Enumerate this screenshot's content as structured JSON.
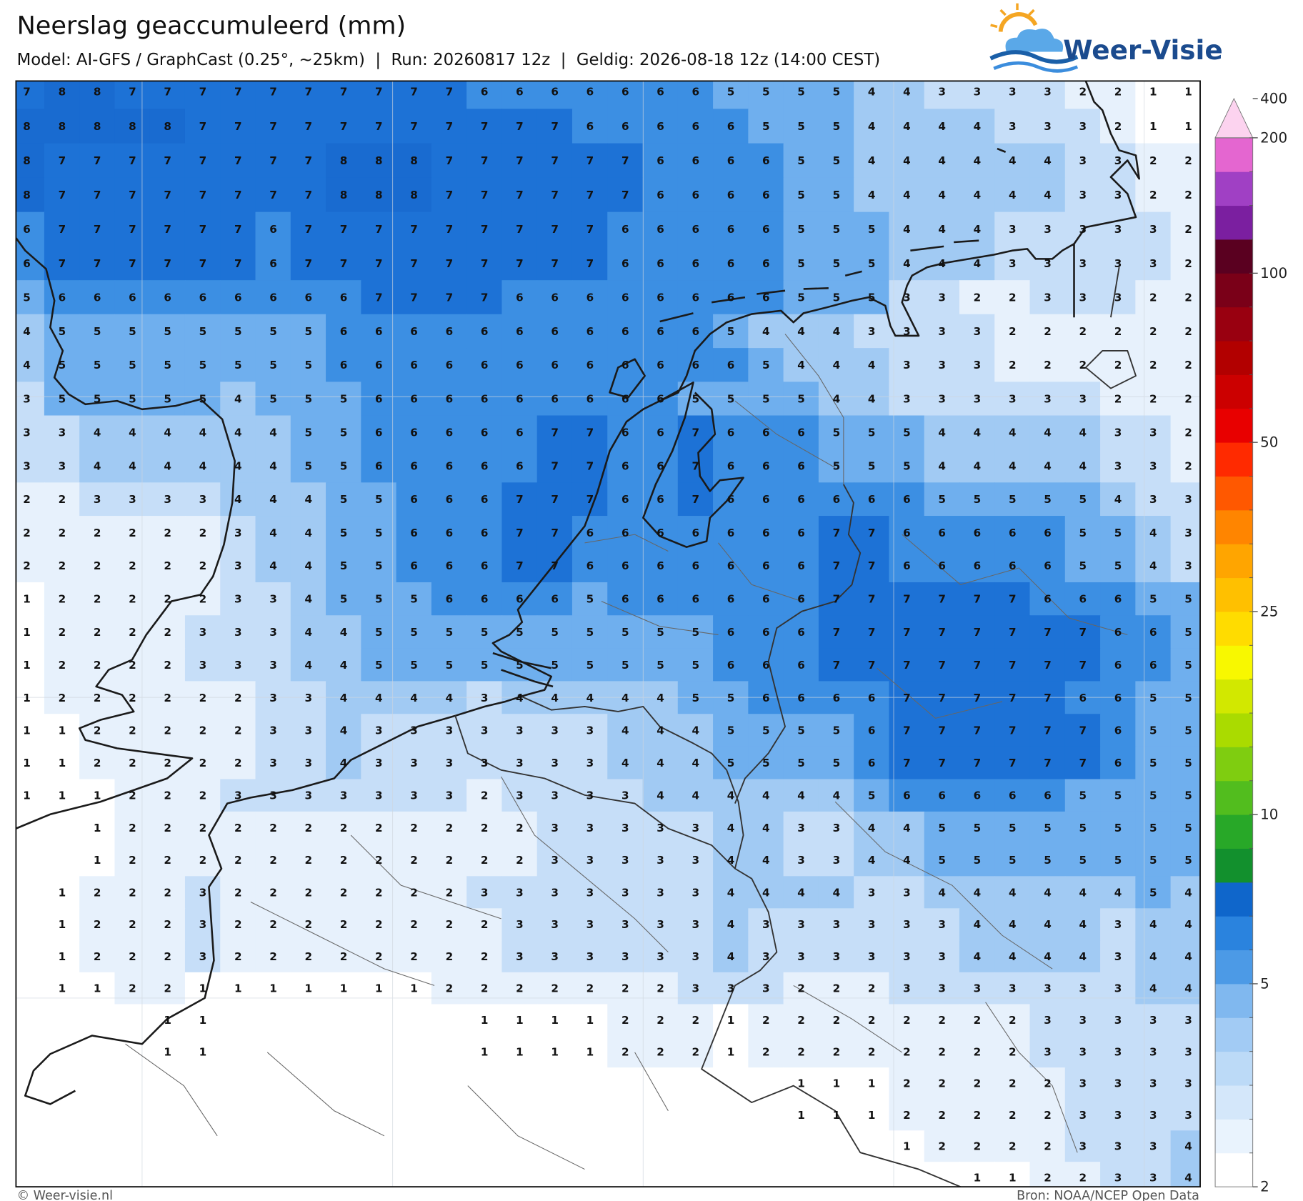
{
  "header": {
    "title": "Neerslag geaccumuleerd (mm)",
    "subtitle": "Model: AI-GFS / GraphCast (0.25°, ~25km)  |  Run: 20260817 12z  |  Geldig: 2026-08-18 12z (14:00 CEST)",
    "logo": "Weer-Visie"
  },
  "map": {
    "type": "value-grid",
    "cell_colors": [
      "#ffffff",
      "#ffffff",
      "#e7f1fc",
      "#c6def8",
      "#a1caf3",
      "#6fafee",
      "#3c8fe3",
      "#1d72d6",
      "#196bd0"
    ],
    "values": [
      [
        7,
        8,
        8,
        7,
        7,
        7,
        7,
        7,
        7,
        7,
        7,
        7,
        7,
        6,
        6,
        6,
        6,
        6,
        6,
        6,
        5,
        5,
        5,
        5,
        4,
        4,
        3,
        3,
        3,
        3,
        2,
        2,
        1,
        1
      ],
      [
        8,
        8,
        8,
        8,
        8,
        7,
        7,
        7,
        7,
        7,
        7,
        7,
        7,
        7,
        7,
        7,
        6,
        6,
        6,
        6,
        6,
        5,
        5,
        5,
        4,
        4,
        4,
        4,
        3,
        3,
        3,
        2,
        1,
        1
      ],
      [
        8,
        7,
        7,
        7,
        7,
        7,
        7,
        7,
        7,
        8,
        8,
        8,
        7,
        7,
        7,
        7,
        7,
        7,
        6,
        6,
        6,
        6,
        5,
        5,
        4,
        4,
        4,
        4,
        4,
        4,
        3,
        3,
        2,
        2
      ],
      [
        8,
        7,
        7,
        7,
        7,
        7,
        7,
        7,
        7,
        8,
        8,
        8,
        7,
        7,
        7,
        7,
        7,
        7,
        6,
        6,
        6,
        6,
        5,
        5,
        4,
        4,
        4,
        4,
        4,
        4,
        3,
        3,
        2,
        2
      ],
      [
        6,
        7,
        7,
        7,
        7,
        7,
        7,
        6,
        7,
        7,
        7,
        7,
        7,
        7,
        7,
        7,
        7,
        6,
        6,
        6,
        6,
        6,
        5,
        5,
        5,
        4,
        4,
        4,
        3,
        3,
        3,
        3,
        3,
        2
      ],
      [
        6,
        7,
        7,
        7,
        7,
        7,
        7,
        6,
        7,
        7,
        7,
        7,
        7,
        7,
        7,
        7,
        7,
        6,
        6,
        6,
        6,
        6,
        5,
        5,
        5,
        4,
        4,
        4,
        3,
        3,
        3,
        3,
        3,
        2
      ],
      [
        5,
        6,
        6,
        6,
        6,
        6,
        6,
        6,
        6,
        6,
        7,
        7,
        7,
        7,
        6,
        6,
        6,
        6,
        6,
        6,
        6,
        6,
        5,
        5,
        5,
        3,
        3,
        2,
        2,
        3,
        3,
        3,
        2,
        2
      ],
      [
        4,
        5,
        5,
        5,
        5,
        5,
        5,
        5,
        5,
        6,
        6,
        6,
        6,
        6,
        6,
        6,
        6,
        6,
        6,
        6,
        5,
        4,
        4,
        4,
        3,
        3,
        3,
        3,
        2,
        2,
        2,
        2,
        2,
        2
      ],
      [
        4,
        5,
        5,
        5,
        5,
        5,
        5,
        5,
        5,
        6,
        6,
        6,
        6,
        6,
        6,
        6,
        6,
        6,
        6,
        6,
        6,
        5,
        4,
        4,
        4,
        3,
        3,
        3,
        2,
        2,
        2,
        2,
        2,
        2
      ],
      [
        3,
        5,
        5,
        5,
        5,
        5,
        4,
        5,
        5,
        5,
        6,
        6,
        6,
        6,
        6,
        6,
        6,
        6,
        6,
        5,
        5,
        5,
        5,
        4,
        4,
        3,
        3,
        3,
        3,
        3,
        3,
        2,
        2,
        2
      ],
      [
        3,
        3,
        4,
        4,
        4,
        4,
        4,
        4,
        5,
        5,
        6,
        6,
        6,
        6,
        6,
        7,
        7,
        6,
        6,
        7,
        6,
        6,
        6,
        5,
        5,
        5,
        4,
        4,
        4,
        4,
        4,
        3,
        3,
        2
      ],
      [
        3,
        3,
        4,
        4,
        4,
        4,
        4,
        4,
        5,
        5,
        6,
        6,
        6,
        6,
        6,
        7,
        7,
        6,
        6,
        7,
        6,
        6,
        6,
        5,
        5,
        5,
        4,
        4,
        4,
        4,
        4,
        3,
        3,
        2
      ],
      [
        2,
        2,
        3,
        3,
        3,
        3,
        4,
        4,
        4,
        5,
        5,
        6,
        6,
        6,
        7,
        7,
        7,
        6,
        6,
        7,
        6,
        6,
        6,
        6,
        6,
        6,
        5,
        5,
        5,
        5,
        5,
        4,
        3,
        3
      ],
      [
        2,
        2,
        2,
        2,
        2,
        2,
        3,
        4,
        4,
        5,
        5,
        6,
        6,
        6,
        7,
        7,
        6,
        6,
        6,
        6,
        6,
        6,
        6,
        7,
        7,
        6,
        6,
        6,
        6,
        6,
        5,
        5,
        4,
        3
      ],
      [
        2,
        2,
        2,
        2,
        2,
        2,
        3,
        4,
        4,
        5,
        5,
        6,
        6,
        6,
        7,
        7,
        6,
        6,
        6,
        6,
        6,
        6,
        6,
        7,
        7,
        6,
        6,
        6,
        6,
        6,
        5,
        5,
        4,
        3
      ],
      [
        1,
        2,
        2,
        2,
        2,
        2,
        3,
        3,
        4,
        5,
        5,
        5,
        6,
        6,
        6,
        6,
        5,
        6,
        6,
        6,
        6,
        6,
        6,
        7,
        7,
        7,
        7,
        7,
        7,
        6,
        6,
        6,
        5,
        5
      ],
      [
        1,
        2,
        2,
        2,
        2,
        3,
        3,
        3,
        4,
        4,
        5,
        5,
        5,
        5,
        5,
        5,
        5,
        5,
        5,
        5,
        6,
        6,
        6,
        7,
        7,
        7,
        7,
        7,
        7,
        7,
        7,
        6,
        6,
        5
      ],
      [
        1,
        2,
        2,
        2,
        2,
        3,
        3,
        3,
        4,
        4,
        5,
        5,
        5,
        5,
        5,
        5,
        5,
        5,
        5,
        5,
        6,
        6,
        6,
        7,
        7,
        7,
        7,
        7,
        7,
        7,
        7,
        6,
        6,
        5
      ],
      [
        1,
        2,
        2,
        2,
        2,
        2,
        2,
        3,
        3,
        4,
        4,
        4,
        4,
        3,
        4,
        4,
        4,
        4,
        4,
        5,
        5,
        6,
        6,
        6,
        6,
        7,
        7,
        7,
        7,
        7,
        6,
        6,
        5,
        5
      ],
      [
        1,
        1,
        2,
        2,
        2,
        2,
        2,
        3,
        3,
        4,
        3,
        3,
        3,
        3,
        3,
        3,
        3,
        4,
        4,
        4,
        5,
        5,
        5,
        5,
        6,
        7,
        7,
        7,
        7,
        7,
        7,
        6,
        5,
        5
      ],
      [
        1,
        1,
        2,
        2,
        2,
        2,
        2,
        3,
        3,
        4,
        3,
        3,
        3,
        3,
        3,
        3,
        3,
        4,
        4,
        4,
        5,
        5,
        5,
        5,
        6,
        7,
        7,
        7,
        7,
        7,
        7,
        6,
        5,
        5
      ],
      [
        1,
        1,
        1,
        2,
        2,
        2,
        3,
        3,
        3,
        3,
        3,
        3,
        3,
        2,
        3,
        3,
        3,
        3,
        4,
        4,
        4,
        4,
        4,
        4,
        5,
        6,
        6,
        6,
        6,
        6,
        5,
        5,
        5,
        5
      ],
      [
        null,
        null,
        1,
        2,
        2,
        2,
        2,
        2,
        2,
        2,
        2,
        2,
        2,
        2,
        2,
        3,
        3,
        3,
        3,
        3,
        4,
        4,
        3,
        3,
        4,
        4,
        5,
        5,
        5,
        5,
        5,
        5,
        5,
        5
      ],
      [
        null,
        null,
        1,
        2,
        2,
        2,
        2,
        2,
        2,
        2,
        2,
        2,
        2,
        2,
        2,
        3,
        3,
        3,
        3,
        3,
        4,
        4,
        3,
        3,
        4,
        4,
        5,
        5,
        5,
        5,
        5,
        5,
        5,
        5
      ],
      [
        null,
        1,
        2,
        2,
        2,
        3,
        2,
        2,
        2,
        2,
        2,
        2,
        2,
        3,
        3,
        3,
        3,
        3,
        3,
        3,
        4,
        4,
        4,
        4,
        3,
        3,
        4,
        4,
        4,
        4,
        4,
        4,
        5,
        4
      ],
      [
        null,
        1,
        2,
        2,
        2,
        3,
        2,
        2,
        2,
        2,
        2,
        2,
        2,
        2,
        3,
        3,
        3,
        3,
        3,
        3,
        4,
        3,
        3,
        3,
        3,
        3,
        3,
        4,
        4,
        4,
        4,
        3,
        4,
        4
      ],
      [
        null,
        1,
        2,
        2,
        2,
        3,
        2,
        2,
        2,
        2,
        2,
        2,
        2,
        2,
        3,
        3,
        3,
        3,
        3,
        3,
        4,
        3,
        3,
        3,
        3,
        3,
        3,
        4,
        4,
        4,
        4,
        3,
        4,
        4
      ],
      [
        null,
        1,
        1,
        2,
        2,
        1,
        1,
        1,
        1,
        1,
        1,
        1,
        2,
        2,
        2,
        2,
        2,
        2,
        2,
        3,
        3,
        3,
        2,
        2,
        2,
        3,
        3,
        3,
        3,
        3,
        3,
        3,
        4,
        4
      ],
      [
        null,
        null,
        null,
        null,
        1,
        1,
        null,
        null,
        null,
        null,
        null,
        null,
        null,
        1,
        1,
        1,
        1,
        2,
        2,
        2,
        1,
        2,
        2,
        2,
        2,
        2,
        2,
        2,
        2,
        3,
        3,
        3,
        3,
        3
      ],
      [
        null,
        null,
        null,
        null,
        1,
        1,
        null,
        null,
        null,
        null,
        null,
        null,
        null,
        1,
        1,
        1,
        1,
        2,
        2,
        2,
        1,
        2,
        2,
        2,
        2,
        2,
        2,
        2,
        2,
        3,
        3,
        3,
        3,
        3
      ],
      [
        null,
        null,
        null,
        null,
        null,
        null,
        null,
        null,
        null,
        null,
        null,
        null,
        null,
        null,
        null,
        null,
        null,
        null,
        null,
        null,
        null,
        null,
        1,
        1,
        1,
        2,
        2,
        2,
        2,
        2,
        3,
        3,
        3,
        3
      ],
      [
        null,
        null,
        null,
        null,
        null,
        null,
        null,
        null,
        null,
        null,
        null,
        null,
        null,
        null,
        null,
        null,
        null,
        null,
        null,
        null,
        null,
        null,
        1,
        1,
        1,
        2,
        2,
        2,
        2,
        2,
        3,
        3,
        3,
        3
      ],
      [
        null,
        null,
        null,
        null,
        null,
        null,
        null,
        null,
        null,
        null,
        null,
        null,
        null,
        null,
        null,
        null,
        null,
        null,
        null,
        null,
        null,
        null,
        null,
        null,
        null,
        1,
        2,
        2,
        2,
        2,
        3,
        3,
        3,
        4
      ],
      [
        null,
        null,
        null,
        null,
        null,
        null,
        null,
        null,
        null,
        null,
        null,
        null,
        null,
        null,
        null,
        null,
        null,
        null,
        null,
        null,
        null,
        null,
        null,
        null,
        null,
        null,
        null,
        1,
        1,
        2,
        2,
        3,
        3,
        4
      ]
    ]
  },
  "colorbar": {
    "bounds": [
      2,
      2.5,
      3,
      3.5,
      4,
      4.5,
      5,
      6,
      7,
      8,
      9,
      10,
      12.5,
      15,
      17.5,
      20,
      22.5,
      25,
      30,
      35,
      40,
      45,
      50,
      60,
      70,
      80,
      90,
      100,
      125,
      150,
      175,
      200,
      400
    ],
    "colors": [
      "#ffffff",
      "#e9f3fd",
      "#d4e7fa",
      "#bcdaf7",
      "#a2cbf4",
      "#80b8ef",
      "#4c9ae6",
      "#2a83de",
      "#0f66cb",
      "#12902d",
      "#28a828",
      "#52bd1e",
      "#7fcd10",
      "#aadb00",
      "#d2e800",
      "#f8f800",
      "#ffdc00",
      "#ffc000",
      "#ffa500",
      "#ff8500",
      "#ff5800",
      "#ff2a00",
      "#e80000",
      "#cc0000",
      "#b20000",
      "#990010",
      "#7a0018",
      "#5a0020",
      "#7b1fa0",
      "#a040c4",
      "#e466d0",
      "#fcd3ef"
    ],
    "ticks": [
      2,
      5,
      10,
      25,
      50,
      100,
      200,
      400
    ]
  },
  "footer": {
    "left": "© Weer-visie.nl",
    "right": "Bron: NOAA/NCEP Open Data"
  }
}
